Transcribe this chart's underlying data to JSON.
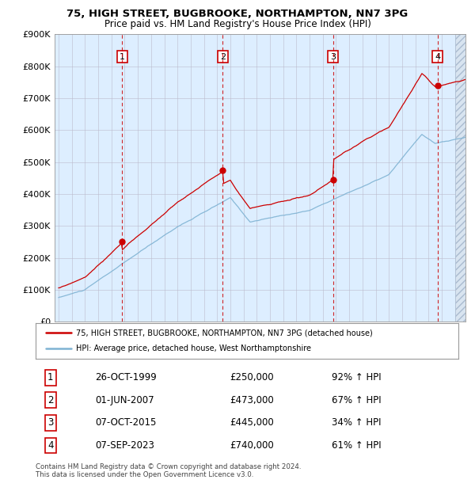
{
  "title1": "75, HIGH STREET, BUGBROOKE, NORTHAMPTON, NN7 3PG",
  "title2": "Price paid vs. HM Land Registry's House Price Index (HPI)",
  "footer": "Contains HM Land Registry data © Crown copyright and database right 2024.\nThis data is licensed under the Open Government Licence v3.0.",
  "legend_red": "75, HIGH STREET, BUGBROOKE, NORTHAMPTON, NN7 3PG (detached house)",
  "legend_blue": "HPI: Average price, detached house, West Northamptonshire",
  "table_rows": [
    [
      "1",
      "26-OCT-1999",
      "£250,000",
      "92% ↑ HPI"
    ],
    [
      "2",
      "01-JUN-2007",
      "£473,000",
      "67% ↑ HPI"
    ],
    [
      "3",
      "07-OCT-2015",
      "£445,000",
      "34% ↑ HPI"
    ],
    [
      "4",
      "07-SEP-2023",
      "£740,000",
      "61% ↑ HPI"
    ]
  ],
  "trans_years": [
    1999.82,
    2007.42,
    2015.77,
    2023.68
  ],
  "trans_prices": [
    250000,
    473000,
    445000,
    740000
  ],
  "trans_labels": [
    "1",
    "2",
    "3",
    "4"
  ],
  "ylim": [
    0,
    900000
  ],
  "xlim_left": 1994.7,
  "xlim_right": 2025.8,
  "yticks": [
    0,
    100000,
    200000,
    300000,
    400000,
    500000,
    600000,
    700000,
    800000,
    900000
  ],
  "ytick_labels": [
    "£0",
    "£100K",
    "£200K",
    "£300K",
    "£400K",
    "£500K",
    "£600K",
    "£700K",
    "£800K",
    "£900K"
  ],
  "plot_bg": "#ddeeff",
  "red_color": "#cc0000",
  "blue_color": "#7fb3d3",
  "grid_color": "#bbbbcc",
  "hatch_start": 2025.0
}
